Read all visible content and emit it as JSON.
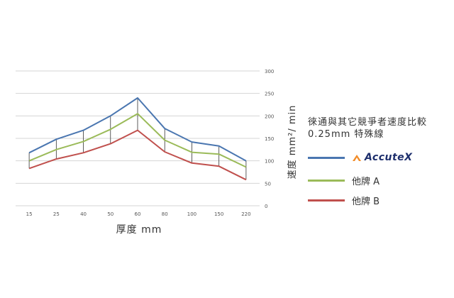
{
  "chart_data": {
    "type": "line",
    "categories": [
      "15",
      "25",
      "40",
      "50",
      "60",
      "80",
      "100",
      "150",
      "220"
    ],
    "series": [
      {
        "name": "AccuteX",
        "color": "#4a76b0",
        "values": [
          118,
          148,
          168,
          200,
          240,
          172,
          142,
          133,
          100
        ]
      },
      {
        "name": "他牌 A",
        "color": "#9bbb59",
        "values": [
          100,
          125,
          143,
          170,
          205,
          146,
          119,
          115,
          86
        ]
      },
      {
        "name": "他牌 B",
        "color": "#c0504d",
        "values": [
          83,
          104,
          118,
          138,
          168,
          120,
          95,
          88,
          58
        ]
      }
    ],
    "y_ticks": [
      "0",
      "50",
      "100",
      "150",
      "200",
      "250",
      "300"
    ],
    "ylim": [
      0,
      300
    ],
    "xlabel": "厚度 mm",
    "ylabel": "速度  mm²/ min",
    "title_lines": [
      "徠通與其它競爭者速度比較",
      "0.25mm 特殊線"
    ],
    "grid": true,
    "legend_position": "right",
    "legend_labels": [
      "AccuteX",
      "他牌 A",
      "他牌 B"
    ],
    "logo_text": "AccuteX"
  }
}
